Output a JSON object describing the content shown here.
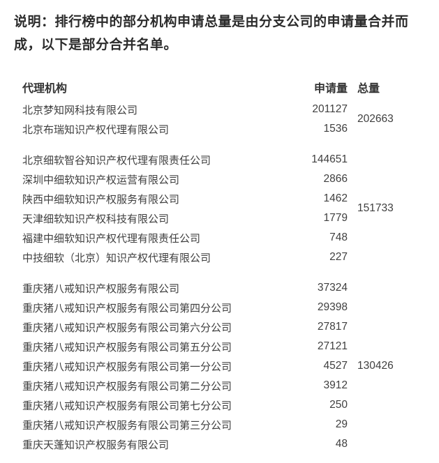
{
  "intro": "说明：排行榜中的部分机构申请总量是由分支公司的申请量合并而成，以下是部分合并名单。",
  "table": {
    "columns": {
      "agency": "代理机构",
      "applications": "申请量",
      "total": "总量"
    },
    "groups": [
      {
        "total": "202663",
        "rows": [
          {
            "name": "北京梦知网科技有限公司",
            "applications": "201127"
          },
          {
            "name": "北京布瑞知识产权代理有限公司",
            "applications": "1536"
          }
        ]
      },
      {
        "total": "151733",
        "rows": [
          {
            "name": "北京细软智谷知识产权代理有限责任公司",
            "applications": "144651"
          },
          {
            "name": "深圳中细软知识产权运营有限公司",
            "applications": "2866"
          },
          {
            "name": "陕西中细软知识产权服务有限公司",
            "applications": "1462"
          },
          {
            "name": "天津细软知识产权科技有限公司",
            "applications": "1779"
          },
          {
            "name": "福建中细软知识产权代理有限责任公司",
            "applications": "748"
          },
          {
            "name": "中技细软（北京）知识产权代理有限公司",
            "applications": "227"
          }
        ]
      },
      {
        "total": "130426",
        "rows": [
          {
            "name": "重庆猪八戒知识产权服务有限公司",
            "applications": "37324"
          },
          {
            "name": "重庆猪八戒知识产权服务有限公司第四分公司",
            "applications": "29398"
          },
          {
            "name": "重庆猪八戒知识产权服务有限公司第六分公司",
            "applications": "27817"
          },
          {
            "name": "重庆猪八戒知识产权服务有限公司第五分公司",
            "applications": "27121"
          },
          {
            "name": "重庆猪八戒知识产权服务有限公司第一分公司",
            "applications": "4527"
          },
          {
            "name": "重庆猪八戒知识产权服务有限公司第二分公司",
            "applications": "3912"
          },
          {
            "name": "重庆猪八戒知识产权服务有限公司第七分公司",
            "applications": "250"
          },
          {
            "name": "重庆猪八戒知识产权服务有限公司第三分公司",
            "applications": "29"
          },
          {
            "name": "重庆天蓬知识产权服务有限公司",
            "applications": "48"
          }
        ]
      }
    ]
  }
}
